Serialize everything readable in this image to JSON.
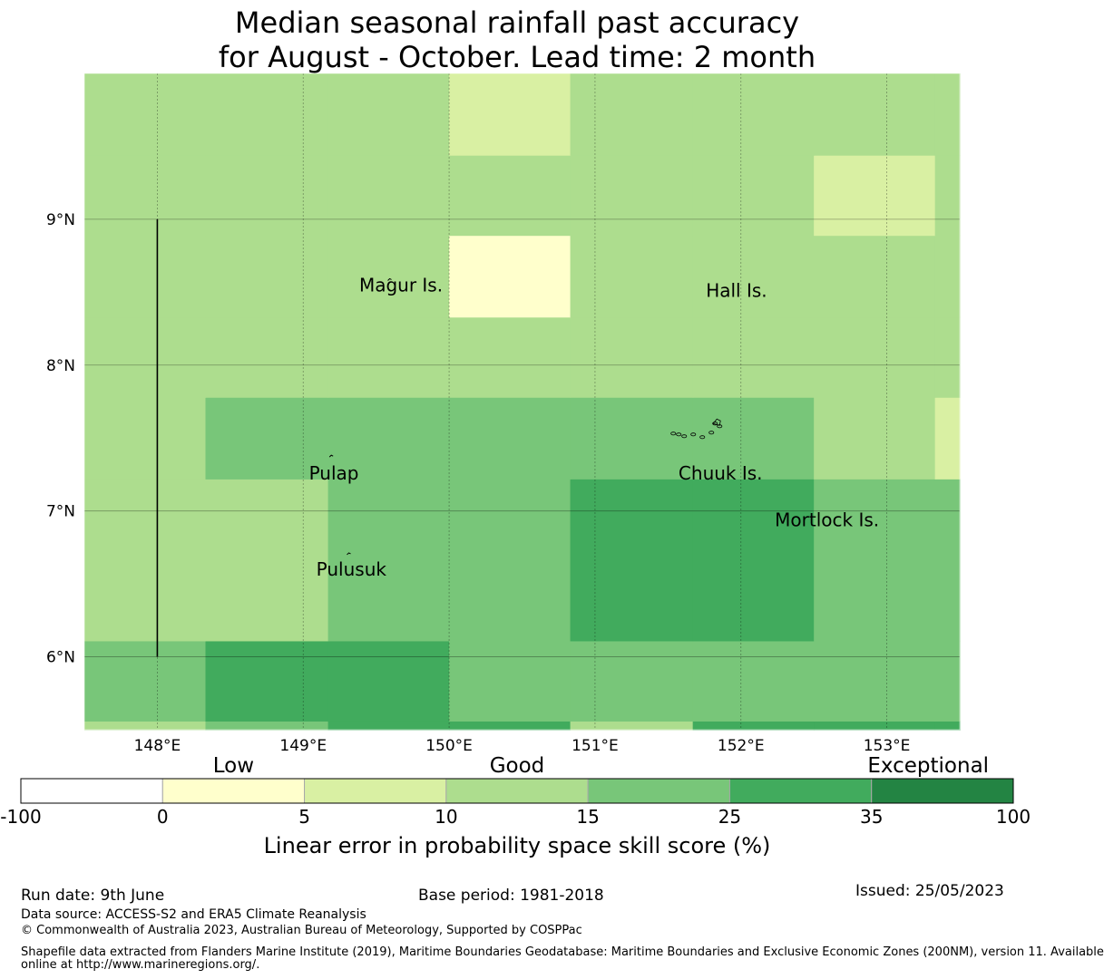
{
  "title": {
    "line1": "Median seasonal rainfall past accuracy",
    "line2": "for August - October. Lead time: 2 month"
  },
  "map": {
    "lon_range": [
      147.5,
      153.5
    ],
    "lat_range": [
      5.5,
      10.0
    ],
    "lon_ticks": [
      {
        "value": 148,
        "label": "148°E"
      },
      {
        "value": 149,
        "label": "149°E"
      },
      {
        "value": 150,
        "label": "150°E"
      },
      {
        "value": 151,
        "label": "151°E"
      },
      {
        "value": 152,
        "label": "152°E"
      },
      {
        "value": 153,
        "label": "153°E"
      }
    ],
    "lat_ticks": [
      {
        "value": 6,
        "label": "6°N"
      },
      {
        "value": 7,
        "label": "7°N"
      },
      {
        "value": 8,
        "label": "8°N"
      },
      {
        "value": 9,
        "label": "9°N"
      }
    ],
    "grid_lon_edges": [
      147.5,
      148.33,
      149.17,
      150.0,
      150.83,
      151.67,
      152.5,
      153.33,
      153.5
    ],
    "grid_lat_edges": [
      5.5,
      5.56,
      6.11,
      7.22,
      7.78,
      8.33,
      8.89,
      9.44,
      10.0
    ],
    "grid_category": [
      [
        3,
        4,
        5,
        5,
        3,
        5,
        5,
        5
      ],
      [
        4,
        5,
        5,
        4,
        4,
        4,
        4,
        4
      ],
      [
        3,
        3,
        4,
        4,
        5,
        5,
        4,
        4
      ],
      [
        3,
        4,
        4,
        4,
        4,
        4,
        3,
        2
      ],
      [
        3,
        3,
        3,
        3,
        3,
        3,
        3,
        3
      ],
      [
        3,
        3,
        3,
        1,
        3,
        3,
        3,
        3
      ],
      [
        3,
        3,
        3,
        3,
        3,
        3,
        2,
        3
      ],
      [
        3,
        3,
        3,
        2,
        3,
        3,
        3,
        3
      ]
    ],
    "eez_line": {
      "lon": 148.0,
      "lat_from": 6.0,
      "lat_to": 9.0
    },
    "islands": [
      {
        "name": "Magur Is.",
        "lon": 149.67,
        "lat": 8.55
      },
      {
        "name": "Hall Is.",
        "lon": 151.97,
        "lat": 8.51
      },
      {
        "name": "Pulap",
        "lon": 149.21,
        "lat": 7.26
      },
      {
        "name": "Chuuk Is.",
        "lon": 151.86,
        "lat": 7.26
      },
      {
        "name": "Mortlock Is.",
        "lon": 152.59,
        "lat": 6.94
      },
      {
        "name": "Pulusuk",
        "lon": 149.33,
        "lat": 6.6
      }
    ]
  },
  "colorbar": {
    "boundaries": [
      "-100",
      "0",
      "5",
      "10",
      "15",
      "25",
      "35",
      "100"
    ],
    "colors": [
      "#ffffff",
      "#ffffcc",
      "#d9f0a3",
      "#addd8e",
      "#78c679",
      "#41ab5d",
      "#238443"
    ],
    "categories": [
      {
        "label": "Low",
        "at_segment": 1.5
      },
      {
        "label": "Good",
        "at_segment": 3.5
      },
      {
        "label": "Exceptional",
        "at_segment": 6.4
      }
    ],
    "label": "Linear error in probability space skill score (%)"
  },
  "footer": {
    "run_date": "Run date: 9th June",
    "base_period": "Base period: 1981-2018",
    "issued": "Issued: 25/05/2023",
    "data_source": "Data source: ACCESS-S2 and ERA5 Climate Reanalysis",
    "copyright": "© Commonwealth of Australia 2023, Australian Bureau of Meteorology, Supported by COSPPac",
    "shapefile_line1": "Shapefile data extracted from Flanders Marine Institute (2019), Maritime Boundaries Geodatabase: Maritime Boundaries and Exclusive Economic Zones (200NM), version 11. Available",
    "shapefile_line2": "online at http://www.marineregions.org/."
  }
}
